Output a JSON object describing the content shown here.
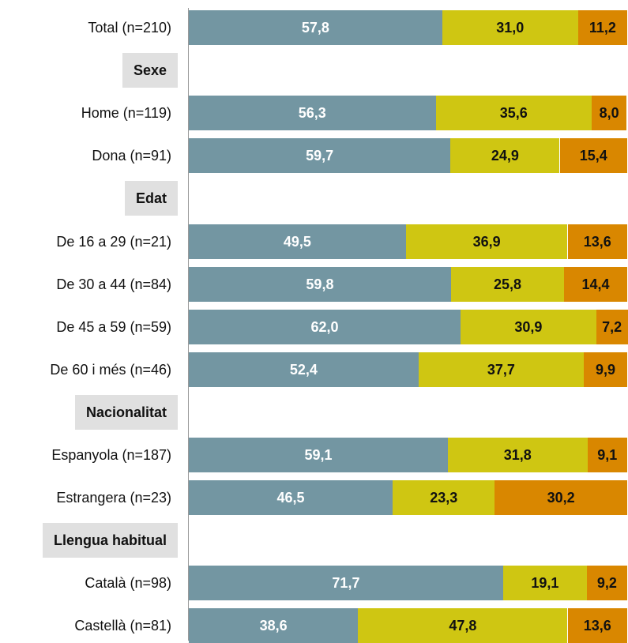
{
  "chart_data": {
    "type": "bar",
    "orientation": "horizontal",
    "stacked": true,
    "xlim": [
      0,
      100
    ],
    "grid": false,
    "legend": "none",
    "colors": [
      "#7396a2",
      "#cfc612",
      "#d98700"
    ],
    "rows": [
      {
        "kind": "bar",
        "label": "Total (n=210)",
        "values": [
          57.8,
          31.0,
          11.2
        ],
        "texts": [
          "57,8",
          "31,0",
          "11,2"
        ]
      },
      {
        "kind": "section",
        "label": "Sexe"
      },
      {
        "kind": "bar",
        "label": "Home (n=119)",
        "values": [
          56.3,
          35.6,
          8.0
        ],
        "texts": [
          "56,3",
          "35,6",
          "8,0"
        ]
      },
      {
        "kind": "bar",
        "label": "Dona (n=91)",
        "values": [
          59.7,
          24.9,
          15.4
        ],
        "texts": [
          "59,7",
          "24,9",
          "15,4"
        ]
      },
      {
        "kind": "section",
        "label": "Edat"
      },
      {
        "kind": "bar",
        "label": "De 16 a 29 (n=21)",
        "values": [
          49.5,
          36.9,
          13.6
        ],
        "texts": [
          "49,5",
          "36,9",
          "13,6"
        ]
      },
      {
        "kind": "bar",
        "label": "De 30 a 44 (n=84)",
        "values": [
          59.8,
          25.8,
          14.4
        ],
        "texts": [
          "59,8",
          "25,8",
          "14,4"
        ]
      },
      {
        "kind": "bar",
        "label": "De 45 a 59 (n=59)",
        "values": [
          62.0,
          30.9,
          7.2
        ],
        "texts": [
          "62,0",
          "30,9",
          "7,2"
        ]
      },
      {
        "kind": "bar",
        "label": "De 60 i més (n=46)",
        "values": [
          52.4,
          37.7,
          9.9
        ],
        "texts": [
          "52,4",
          "37,7",
          "9,9"
        ]
      },
      {
        "kind": "section",
        "label": "Nacionalitat"
      },
      {
        "kind": "bar",
        "label": "Espanyola (n=187)",
        "values": [
          59.1,
          31.8,
          9.1
        ],
        "texts": [
          "59,1",
          "31,8",
          "9,1"
        ]
      },
      {
        "kind": "bar",
        "label": "Estrangera (n=23)",
        "values": [
          46.5,
          23.3,
          30.2
        ],
        "texts": [
          "46,5",
          "23,3",
          "30,2"
        ]
      },
      {
        "kind": "section",
        "label": "Llengua habitual"
      },
      {
        "kind": "bar",
        "label": "Català (n=98)",
        "values": [
          71.7,
          19.1,
          9.2
        ],
        "texts": [
          "71,7",
          "19,1",
          "9,2"
        ]
      },
      {
        "kind": "bar",
        "label": "Castellà (n=81)",
        "values": [
          38.6,
          47.8,
          13.6
        ],
        "texts": [
          "38,6",
          "47,8",
          "13,6"
        ]
      }
    ]
  }
}
